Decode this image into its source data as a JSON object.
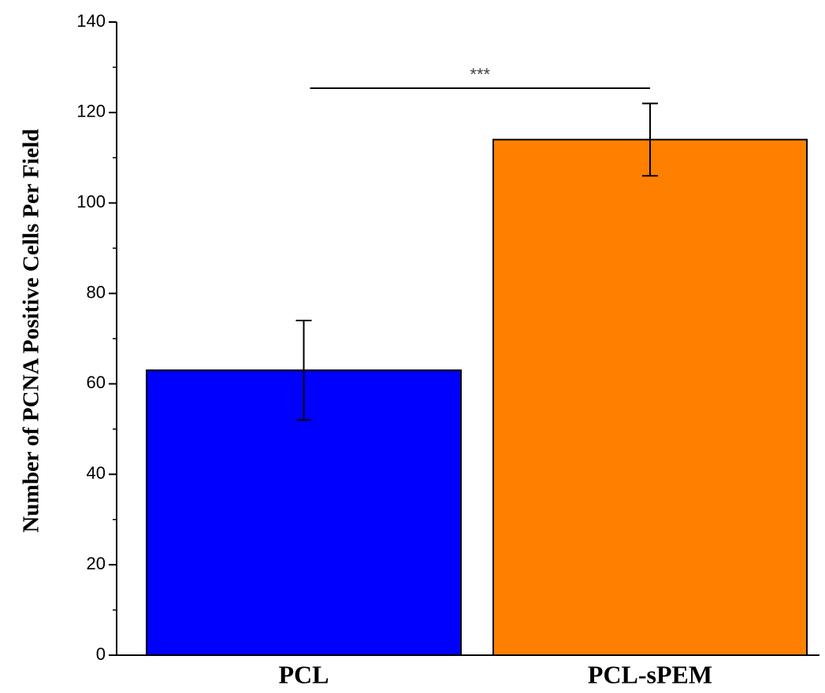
{
  "chart_data": {
    "type": "bar",
    "y_label": "Number of PCNA Positive Cells Per Field",
    "categories": [
      "PCL",
      "PCL-sPEM"
    ],
    "values": [
      63,
      114
    ],
    "errors": [
      11,
      8
    ],
    "colors": [
      "#0000ff",
      "#ff8000"
    ],
    "ylim": [
      0,
      140
    ],
    "yticks": [
      0,
      20,
      40,
      60,
      80,
      100,
      120,
      140
    ],
    "minor_yticks": [
      10,
      30,
      50,
      70,
      90,
      110,
      130
    ],
    "annotations": [
      {
        "text": "***",
        "between": [
          0,
          1
        ]
      }
    ]
  }
}
